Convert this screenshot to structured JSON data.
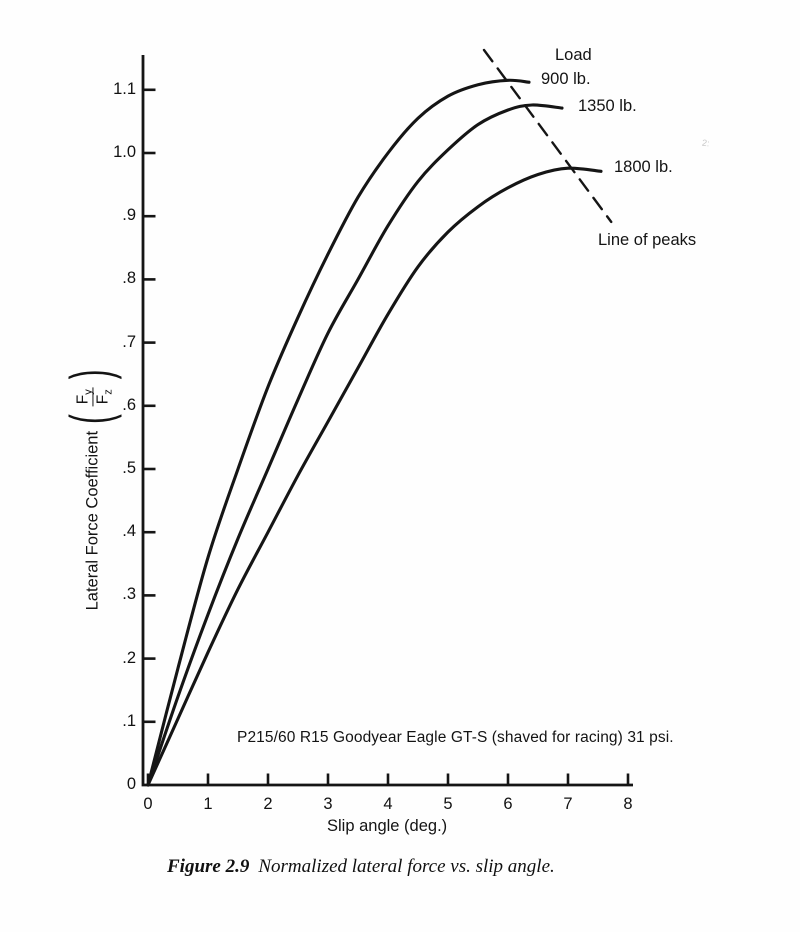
{
  "figure": {
    "ink_color": "#151515",
    "legend": {
      "load_title": "Load",
      "labels": [
        "900 lb.",
        "1350 lb.",
        "1800 lb."
      ],
      "line_of_peaks_label": "Line of peaks"
    },
    "y_axis": {
      "title": "Lateral Force Coefficient",
      "paren_open": "(",
      "paren_close": ")",
      "frac_num_base": "F",
      "frac_num_sub": "y",
      "frac_den_base": "F",
      "frac_den_sub": "z",
      "ticks": [
        "0",
        ".1",
        ".2",
        ".3",
        ".4",
        ".5",
        ".6",
        ".7",
        ".8",
        ".9",
        "1.0",
        "1.1"
      ]
    },
    "x_axis": {
      "title": "Slip angle (deg.)",
      "ticks": [
        "0",
        "1",
        "2",
        "3",
        "4",
        "5",
        "6",
        "7",
        "8"
      ]
    },
    "annotation": "P215/60 R15 Goodyear Eagle GT-S (shaved for racing) 31 psi.",
    "caption": {
      "label": "Figure 2.9",
      "text": "Normalized lateral force vs. slip angle."
    },
    "scan_artifact": "2:"
  },
  "chart_data": {
    "type": "line",
    "title": "Figure 2.9 Normalized lateral force vs. slip angle.",
    "xlabel": "Slip angle (deg.)",
    "ylabel": "Lateral Force Coefficient (Fy/Fz)",
    "xlim": [
      0,
      8
    ],
    "ylim": [
      0,
      1.1
    ],
    "grid": false,
    "legend_position": "curve-end-labels",
    "annotation": "P215/60 R15 Goodyear Eagle GT-S (shaved for racing) 31 psi.",
    "series": [
      {
        "name": "900 lb.",
        "style": "solid",
        "x": [
          0,
          0.5,
          1,
          1.5,
          2,
          2.5,
          3,
          3.5,
          4,
          4.5,
          5,
          5.5,
          6,
          6.35
        ],
        "y": [
          0,
          0.185,
          0.36,
          0.5,
          0.63,
          0.74,
          0.84,
          0.93,
          1.0,
          1.055,
          1.09,
          1.108,
          1.115,
          1.112
        ]
      },
      {
        "name": "1350 lb.",
        "style": "solid",
        "x": [
          0,
          0.5,
          1,
          1.5,
          2,
          2.5,
          3,
          3.5,
          4,
          4.5,
          5,
          5.5,
          6,
          6.4,
          6.9
        ],
        "y": [
          0,
          0.14,
          0.27,
          0.39,
          0.5,
          0.61,
          0.715,
          0.8,
          0.885,
          0.955,
          1.005,
          1.045,
          1.068,
          1.076,
          1.071
        ]
      },
      {
        "name": "1800 lb.",
        "style": "solid",
        "x": [
          0,
          0.5,
          1,
          1.5,
          2,
          2.5,
          3,
          3.5,
          4,
          4.5,
          5,
          5.5,
          6,
          6.5,
          7,
          7.55
        ],
        "y": [
          0,
          0.105,
          0.21,
          0.31,
          0.4,
          0.49,
          0.575,
          0.66,
          0.745,
          0.82,
          0.875,
          0.915,
          0.945,
          0.966,
          0.976,
          0.971
        ]
      },
      {
        "name": "Line of peaks",
        "style": "dashed",
        "x": [
          5.6,
          7.72
        ],
        "y": [
          1.163,
          0.891
        ]
      }
    ]
  }
}
